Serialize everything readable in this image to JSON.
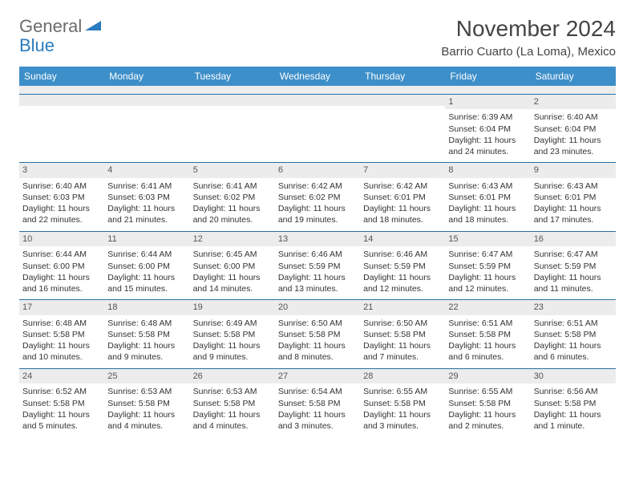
{
  "logo": {
    "text_general": "General",
    "text_blue": "Blue"
  },
  "title": "November 2024",
  "location": "Barrio Cuarto (La Loma), Mexico",
  "colors": {
    "header_bg": "#3d8fc9",
    "header_text": "#ffffff",
    "daynum_bg": "#ececec",
    "cell_border": "#2a6fa3",
    "logo_blue": "#2a7bbf",
    "logo_gray": "#6b6b6b"
  },
  "days_of_week": [
    "Sunday",
    "Monday",
    "Tuesday",
    "Wednesday",
    "Thursday",
    "Friday",
    "Saturday"
  ],
  "weeks": [
    [
      null,
      null,
      null,
      null,
      null,
      {
        "n": "1",
        "sunrise": "Sunrise: 6:39 AM",
        "sunset": "Sunset: 6:04 PM",
        "daylight": "Daylight: 11 hours and 24 minutes."
      },
      {
        "n": "2",
        "sunrise": "Sunrise: 6:40 AM",
        "sunset": "Sunset: 6:04 PM",
        "daylight": "Daylight: 11 hours and 23 minutes."
      }
    ],
    [
      {
        "n": "3",
        "sunrise": "Sunrise: 6:40 AM",
        "sunset": "Sunset: 6:03 PM",
        "daylight": "Daylight: 11 hours and 22 minutes."
      },
      {
        "n": "4",
        "sunrise": "Sunrise: 6:41 AM",
        "sunset": "Sunset: 6:03 PM",
        "daylight": "Daylight: 11 hours and 21 minutes."
      },
      {
        "n": "5",
        "sunrise": "Sunrise: 6:41 AM",
        "sunset": "Sunset: 6:02 PM",
        "daylight": "Daylight: 11 hours and 20 minutes."
      },
      {
        "n": "6",
        "sunrise": "Sunrise: 6:42 AM",
        "sunset": "Sunset: 6:02 PM",
        "daylight": "Daylight: 11 hours and 19 minutes."
      },
      {
        "n": "7",
        "sunrise": "Sunrise: 6:42 AM",
        "sunset": "Sunset: 6:01 PM",
        "daylight": "Daylight: 11 hours and 18 minutes."
      },
      {
        "n": "8",
        "sunrise": "Sunrise: 6:43 AM",
        "sunset": "Sunset: 6:01 PM",
        "daylight": "Daylight: 11 hours and 18 minutes."
      },
      {
        "n": "9",
        "sunrise": "Sunrise: 6:43 AM",
        "sunset": "Sunset: 6:01 PM",
        "daylight": "Daylight: 11 hours and 17 minutes."
      }
    ],
    [
      {
        "n": "10",
        "sunrise": "Sunrise: 6:44 AM",
        "sunset": "Sunset: 6:00 PM",
        "daylight": "Daylight: 11 hours and 16 minutes."
      },
      {
        "n": "11",
        "sunrise": "Sunrise: 6:44 AM",
        "sunset": "Sunset: 6:00 PM",
        "daylight": "Daylight: 11 hours and 15 minutes."
      },
      {
        "n": "12",
        "sunrise": "Sunrise: 6:45 AM",
        "sunset": "Sunset: 6:00 PM",
        "daylight": "Daylight: 11 hours and 14 minutes."
      },
      {
        "n": "13",
        "sunrise": "Sunrise: 6:46 AM",
        "sunset": "Sunset: 5:59 PM",
        "daylight": "Daylight: 11 hours and 13 minutes."
      },
      {
        "n": "14",
        "sunrise": "Sunrise: 6:46 AM",
        "sunset": "Sunset: 5:59 PM",
        "daylight": "Daylight: 11 hours and 12 minutes."
      },
      {
        "n": "15",
        "sunrise": "Sunrise: 6:47 AM",
        "sunset": "Sunset: 5:59 PM",
        "daylight": "Daylight: 11 hours and 12 minutes."
      },
      {
        "n": "16",
        "sunrise": "Sunrise: 6:47 AM",
        "sunset": "Sunset: 5:59 PM",
        "daylight": "Daylight: 11 hours and 11 minutes."
      }
    ],
    [
      {
        "n": "17",
        "sunrise": "Sunrise: 6:48 AM",
        "sunset": "Sunset: 5:58 PM",
        "daylight": "Daylight: 11 hours and 10 minutes."
      },
      {
        "n": "18",
        "sunrise": "Sunrise: 6:48 AM",
        "sunset": "Sunset: 5:58 PM",
        "daylight": "Daylight: 11 hours and 9 minutes."
      },
      {
        "n": "19",
        "sunrise": "Sunrise: 6:49 AM",
        "sunset": "Sunset: 5:58 PM",
        "daylight": "Daylight: 11 hours and 9 minutes."
      },
      {
        "n": "20",
        "sunrise": "Sunrise: 6:50 AM",
        "sunset": "Sunset: 5:58 PM",
        "daylight": "Daylight: 11 hours and 8 minutes."
      },
      {
        "n": "21",
        "sunrise": "Sunrise: 6:50 AM",
        "sunset": "Sunset: 5:58 PM",
        "daylight": "Daylight: 11 hours and 7 minutes."
      },
      {
        "n": "22",
        "sunrise": "Sunrise: 6:51 AM",
        "sunset": "Sunset: 5:58 PM",
        "daylight": "Daylight: 11 hours and 6 minutes."
      },
      {
        "n": "23",
        "sunrise": "Sunrise: 6:51 AM",
        "sunset": "Sunset: 5:58 PM",
        "daylight": "Daylight: 11 hours and 6 minutes."
      }
    ],
    [
      {
        "n": "24",
        "sunrise": "Sunrise: 6:52 AM",
        "sunset": "Sunset: 5:58 PM",
        "daylight": "Daylight: 11 hours and 5 minutes."
      },
      {
        "n": "25",
        "sunrise": "Sunrise: 6:53 AM",
        "sunset": "Sunset: 5:58 PM",
        "daylight": "Daylight: 11 hours and 4 minutes."
      },
      {
        "n": "26",
        "sunrise": "Sunrise: 6:53 AM",
        "sunset": "Sunset: 5:58 PM",
        "daylight": "Daylight: 11 hours and 4 minutes."
      },
      {
        "n": "27",
        "sunrise": "Sunrise: 6:54 AM",
        "sunset": "Sunset: 5:58 PM",
        "daylight": "Daylight: 11 hours and 3 minutes."
      },
      {
        "n": "28",
        "sunrise": "Sunrise: 6:55 AM",
        "sunset": "Sunset: 5:58 PM",
        "daylight": "Daylight: 11 hours and 3 minutes."
      },
      {
        "n": "29",
        "sunrise": "Sunrise: 6:55 AM",
        "sunset": "Sunset: 5:58 PM",
        "daylight": "Daylight: 11 hours and 2 minutes."
      },
      {
        "n": "30",
        "sunrise": "Sunrise: 6:56 AM",
        "sunset": "Sunset: 5:58 PM",
        "daylight": "Daylight: 11 hours and 1 minute."
      }
    ]
  ]
}
